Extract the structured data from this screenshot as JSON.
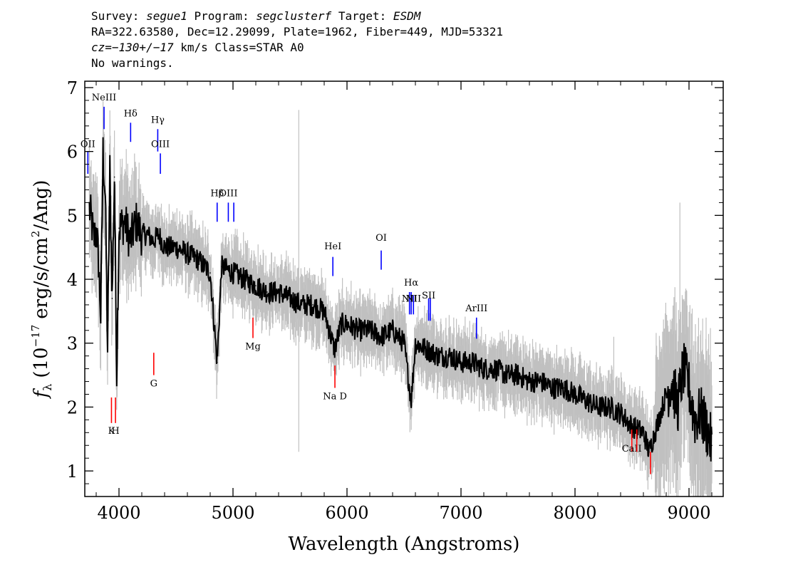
{
  "header": {
    "survey_label": "Survey:",
    "survey": "segue1",
    "program_label": "Program:",
    "program": "segclusterf",
    "target_label": "Target:",
    "target": "ESDM",
    "line2": "RA=322.63580, Dec=12.29099, Plate=1962, Fiber=449, MJD=53321",
    "redshift": "cz=−130+/−17",
    "redshift_rest": "km/s Class=STAR A0",
    "line4": "No warnings."
  },
  "chart_data": {
    "type": "line",
    "xlabel": "Wavelength (Angstroms)",
    "ylabel_sym": "f",
    "ylabel_sub": "λ",
    "ylabel_open": "(10",
    "ylabel_exp": "−17",
    "ylabel_mid": "erg/s/cm",
    "ylabel_exp2": "2",
    "ylabel_close": "/Ang)",
    "xlim": [
      3700,
      9300
    ],
    "ylim": [
      0.6,
      7.1
    ],
    "x_ticks": [
      4000,
      5000,
      6000,
      7000,
      8000,
      9000
    ],
    "y_ticks": [
      1,
      2,
      3,
      4,
      5,
      6,
      7
    ],
    "series": [
      {
        "color": "#000000",
        "x": [
          3740,
          3760,
          3780,
          3800,
          3820,
          3840,
          3860,
          3880,
          3900,
          3920,
          3940,
          3960,
          3980,
          4000,
          4050,
          4100,
          4150,
          4200,
          4250,
          4300,
          4350,
          4400,
          4500,
          4600,
          4700,
          4800,
          4861,
          4900,
          5000,
          5100,
          5200,
          5300,
          5400,
          5500,
          5600,
          5700,
          5800,
          5890,
          5950,
          6000,
          6100,
          6200,
          6300,
          6400,
          6500,
          6563,
          6600,
          6700,
          6800,
          6900,
          7000,
          7100,
          7200,
          7300,
          7400,
          7500,
          7600,
          7700,
          7800,
          7900,
          8000,
          8100,
          8200,
          8300,
          8400,
          8500,
          8600,
          8650,
          8700,
          8800,
          8850,
          8900,
          8950,
          9000,
          9050,
          9100,
          9150,
          9200
        ],
        "y": [
          5.1,
          4.9,
          4.6,
          4.8,
          4.3,
          3.4,
          6.0,
          5.3,
          2.9,
          5.7,
          3.7,
          5.6,
          2.5,
          4.8,
          4.9,
          4.6,
          4.9,
          4.7,
          4.7,
          4.6,
          4.7,
          4.5,
          4.5,
          4.4,
          4.3,
          4.1,
          2.7,
          4.2,
          4.1,
          4.0,
          3.9,
          3.8,
          3.8,
          3.7,
          3.6,
          3.6,
          3.5,
          2.9,
          3.3,
          3.3,
          3.2,
          3.2,
          3.1,
          3.2,
          3.0,
          2.1,
          3.0,
          2.9,
          2.8,
          2.8,
          2.7,
          2.7,
          2.6,
          2.6,
          2.5,
          2.5,
          2.4,
          2.4,
          2.3,
          2.3,
          2.2,
          2.1,
          2.0,
          2.0,
          1.9,
          1.7,
          1.6,
          1.3,
          1.6,
          2.2,
          2.4,
          2.0,
          2.6,
          2.3,
          1.8,
          1.9,
          1.7,
          1.4
        ]
      }
    ],
    "error_series": {
      "color": "#c0c0c0"
    },
    "spectral_lines": [
      {
        "label": "NeIII",
        "x": 3869,
        "color": "#0000ff",
        "y1": 6.35,
        "y2": 6.7,
        "ly": 6.8
      },
      {
        "label": "Hδ",
        "x": 4102,
        "color": "#0000ff",
        "y1": 6.15,
        "y2": 6.45,
        "ly": 6.55
      },
      {
        "label": "Hγ",
        "x": 4340,
        "color": "#0000ff",
        "y1": 6.0,
        "y2": 6.35,
        "ly": 6.45
      },
      {
        "label": "OIII",
        "x": 4363,
        "color": "#0000ff",
        "y1": 5.65,
        "y2": 5.97,
        "ly": 6.07
      },
      {
        "label": "OII",
        "x": 3727,
        "color": "#0000ff",
        "y1": 5.65,
        "y2": 6.0,
        "ly": 6.07
      },
      {
        "label": "Hβ",
        "x": 4861,
        "color": "#0000ff",
        "y1": 4.9,
        "y2": 5.2,
        "ly": 5.3
      },
      {
        "label": "OIII",
        "x": 4959,
        "color": "#0000ff",
        "y1": 4.9,
        "y2": 5.2,
        "ly": 5.3
      },
      {
        "label": "",
        "x": 5007,
        "color": "#0000ff",
        "y1": 4.9,
        "y2": 5.2,
        "ly": 5.3
      },
      {
        "label": "HeI",
        "x": 5876,
        "color": "#0000ff",
        "y1": 4.05,
        "y2": 4.35,
        "ly": 4.47
      },
      {
        "label": "OI",
        "x": 6300,
        "color": "#0000ff",
        "y1": 4.15,
        "y2": 4.45,
        "ly": 4.6
      },
      {
        "label": "Hα",
        "x": 6563,
        "color": "#0000ff",
        "y1": 3.45,
        "y2": 3.8,
        "ly": 3.9
      },
      {
        "label": "NII",
        "x": 6548,
        "color": "#0000ff",
        "y1": 3.45,
        "y2": 3.8,
        "ly": 3.65
      },
      {
        "label": "NII",
        "x": 6583,
        "color": "#0000ff",
        "y1": 3.45,
        "y2": 3.75,
        "ly": 3.65
      },
      {
        "label": "SII",
        "x": 6716,
        "color": "#0000ff",
        "y1": 3.35,
        "y2": 3.7,
        "ly": 3.7
      },
      {
        "label": "",
        "x": 6731,
        "color": "#0000ff",
        "y1": 3.35,
        "y2": 3.7,
        "ly": 3.7
      },
      {
        "label": "ArIII",
        "x": 7136,
        "color": "#0000ff",
        "y1": 3.07,
        "y2": 3.4,
        "ly": 3.5
      },
      {
        "label": "K",
        "x": 3934,
        "color": "#ff0000",
        "y1": 1.75,
        "y2": 2.15,
        "ly": 1.58
      },
      {
        "label": "H",
        "x": 3969,
        "color": "#ff0000",
        "y1": 1.75,
        "y2": 2.15,
        "ly": 1.58
      },
      {
        "label": "G",
        "x": 4305,
        "color": "#ff0000",
        "y1": 2.5,
        "y2": 2.85,
        "ly": 2.32
      },
      {
        "label": "Mg",
        "x": 5175,
        "color": "#ff0000",
        "y1": 3.08,
        "y2": 3.4,
        "ly": 2.9
      },
      {
        "label": "Na D",
        "x": 5894,
        "color": "#ff0000",
        "y1": 2.3,
        "y2": 2.65,
        "ly": 2.12
      },
      {
        "label": "CaII",
        "x": 8498,
        "color": "#ff0000",
        "y1": 1.3,
        "y2": 1.65,
        "ly": 1.3
      },
      {
        "label": "",
        "x": 8542,
        "color": "#ff0000",
        "y1": 1.3,
        "y2": 1.65,
        "ly": 1.3
      },
      {
        "label": "",
        "x": 8662,
        "color": "#ff0000",
        "y1": 0.95,
        "y2": 1.3,
        "ly": 1.3
      }
    ]
  }
}
